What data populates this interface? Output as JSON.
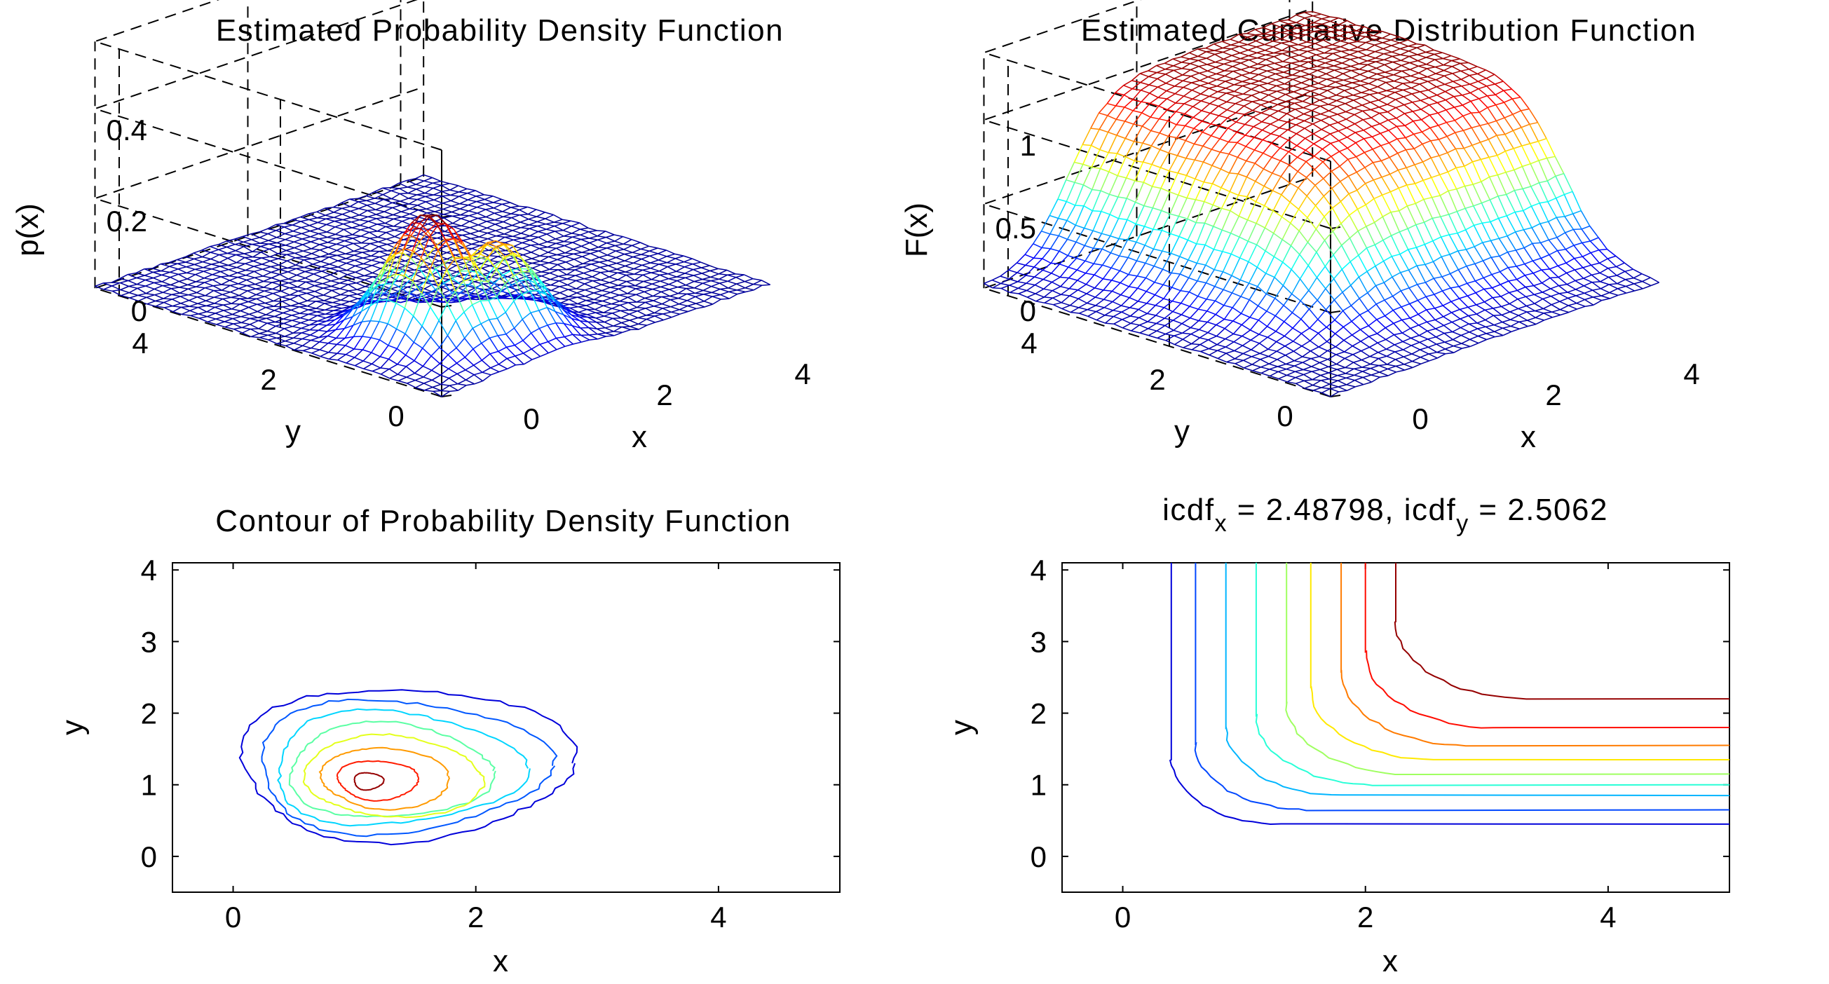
{
  "figure": {
    "background": "#ffffff",
    "axis_color": "#000000",
    "colormap": "jet",
    "colormap_stops": [
      "#00008f",
      "#0000ff",
      "#00ffff",
      "#ffff00",
      "#ff0000",
      "#800000"
    ]
  },
  "chart_data": [
    {
      "id": "pdf_surface",
      "type": "surface3d",
      "title": "Estimated Probability Density Function",
      "xlabel": "x",
      "ylabel": "y",
      "zlabel": "p(x)",
      "xlim": [
        0,
        4.3
      ],
      "ylim": [
        0,
        4.3
      ],
      "zlim": [
        0,
        0.4
      ],
      "xticks": [
        "0",
        "2",
        "4"
      ],
      "yticks": [
        "0",
        "2",
        "4"
      ],
      "zticks": [
        "0",
        "0.2",
        "0.4"
      ],
      "grid": true,
      "peak": {
        "x": 1.0,
        "y": 1.1,
        "value": 0.28
      },
      "secondary_peak": {
        "x": 1.6,
        "y": 0.8,
        "value": 0.25
      }
    },
    {
      "id": "cdf_surface",
      "type": "surface3d",
      "title": "Estimated Cumlative Distribution Function",
      "xlabel": "x",
      "ylabel": "y",
      "zlabel": "F(x)",
      "xlim": [
        0,
        4.3
      ],
      "ylim": [
        0,
        4.3
      ],
      "zlim": [
        0,
        1.2
      ],
      "xticks": [
        "0",
        "2",
        "4"
      ],
      "yticks": [
        "0",
        "2",
        "4"
      ],
      "zticks": [
        "0",
        "0.5",
        "1"
      ],
      "grid": true,
      "max_value": 1.0
    },
    {
      "id": "pdf_contour",
      "type": "contour",
      "title": "Contour of Probability Density Function",
      "xlabel": "x",
      "ylabel": "y",
      "xlim": [
        -0.5,
        5
      ],
      "ylim": [
        -0.5,
        4.1
      ],
      "xticks": [
        0,
        2,
        4
      ],
      "yticks": [
        0,
        1,
        2,
        3,
        4
      ],
      "levels": [
        0.02,
        0.05,
        0.08,
        0.11,
        0.14,
        0.17,
        0.2,
        0.23
      ],
      "center": {
        "x": 1.1,
        "y": 1.15
      }
    },
    {
      "id": "cdf_contour",
      "type": "contour",
      "title_prefix": "icdf",
      "title_sub_x": "x",
      "title_mid": " = 2.48798, icdf",
      "title_sub_y": "y",
      "title_suffix": " = 2.5062",
      "icdf_x": 2.48798,
      "icdf_y": 2.5062,
      "xlabel": "x",
      "ylabel": "y",
      "xlim": [
        -0.5,
        5
      ],
      "ylim": [
        -0.5,
        4.1
      ],
      "xticks": [
        0,
        2,
        4
      ],
      "yticks": [
        0,
        1,
        2,
        3,
        4
      ],
      "levels": [
        0.1,
        0.2,
        0.3,
        0.4,
        0.5,
        0.6,
        0.7,
        0.8,
        0.9
      ],
      "level_corner_x": [
        0.4,
        0.6,
        0.85,
        1.1,
        1.35,
        1.55,
        1.8,
        2.0,
        2.25
      ],
      "level_corner_y": [
        0.45,
        0.65,
        0.85,
        1.0,
        1.15,
        1.35,
        1.55,
        1.8,
        2.2
      ]
    }
  ]
}
